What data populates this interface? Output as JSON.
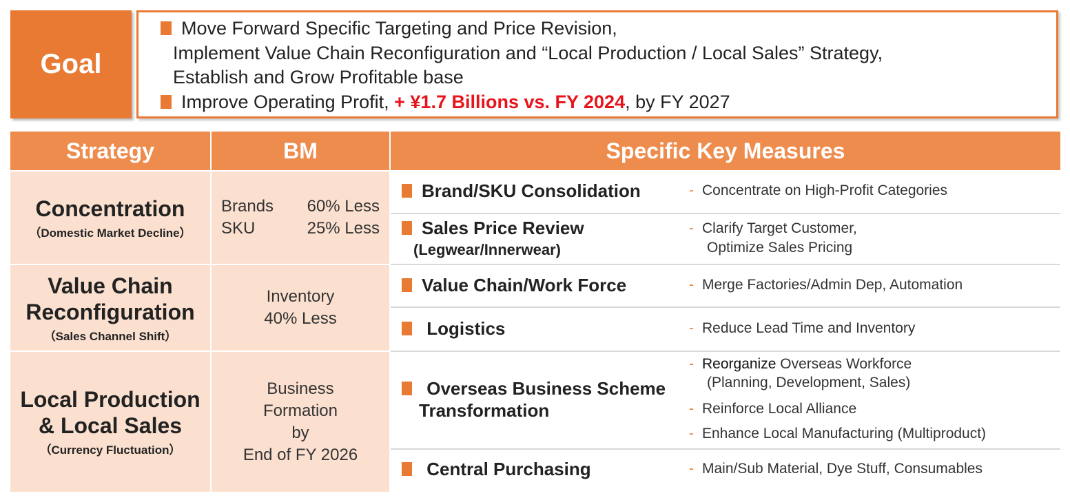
{
  "goal": {
    "label": "Goal",
    "line1": "Move Forward Specific Targeting and Price Revision,",
    "line2": "Implement Value Chain Reconfiguration and “Local Production / Local Sales” Strategy,",
    "line3": "Establish and Grow Profitable base",
    "line4_prefix": "Improve Operating Profit, ",
    "line4_highlight": "+ ¥1.7 Billions vs. FY 2024",
    "line4_suffix": ", by FY 2027"
  },
  "headers": {
    "strategy": "Strategy",
    "bm": "BM",
    "measures": "Specific Key Measures"
  },
  "strategies": [
    {
      "title": "Concentration",
      "subtitle": "（Domestic Market Decline）"
    },
    {
      "title_line1": "Value Chain",
      "title_line2": "Reconfiguration",
      "subtitle": "（Sales Channel Shift）"
    },
    {
      "title_line1": "Local Production",
      "title_line2": "& Local Sales",
      "subtitle": "（Currency Fluctuation）"
    }
  ],
  "bm": {
    "concentration": [
      {
        "label": "Brands",
        "value": "60% Less"
      },
      {
        "label": "SKU",
        "value": "25% Less"
      }
    ],
    "value_chain": [
      "Inventory",
      "40% Less"
    ],
    "local": [
      "Business",
      "Formation",
      "by",
      "End of FY 2026"
    ]
  },
  "measures": [
    {
      "title": "Brand/SKU Consolidation",
      "details": [
        "Concentrate on High-Profit Categories"
      ]
    },
    {
      "title": "Sales Price Review",
      "subtitle": "(Legwear/Innerwear)",
      "details": [
        "Clarify Target Customer,",
        "Optimize Sales Pricing"
      ]
    },
    {
      "title": "Value Chain/Work Force",
      "details": [
        "Merge Factories/Admin Dep, Automation"
      ]
    },
    {
      "title": "Logistics",
      "details": [
        "Reduce Lead Time and Inventory"
      ]
    },
    {
      "title_line1": "Overseas Business Scheme",
      "title_line2": "Transformation",
      "details": [
        {
          "emph": "Reorganize",
          "rest": " Overseas Workforce"
        },
        "(Planning, Development,  Sales)",
        "Reinforce Local Alliance",
        "Enhance Local Manufacturing (Multiproduct)"
      ]
    },
    {
      "title": "Central Purchasing",
      "details": [
        "Main/Sub Material, Dye Stuff, Consumables"
      ]
    }
  ],
  "dash_char": "-",
  "colors": {
    "accent": "#e87a33",
    "header": "#ee8c4e",
    "cell_bg": "#fbe0d0",
    "highlight_red": "#e8141c"
  }
}
